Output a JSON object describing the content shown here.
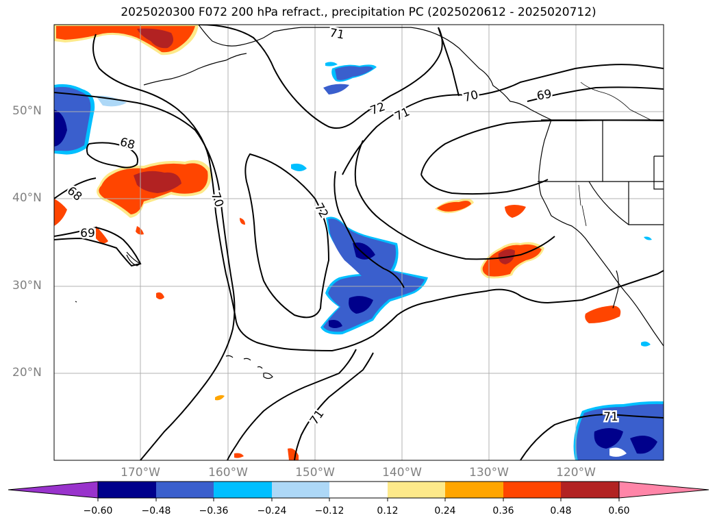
{
  "title": "2025020300 F072 200 hPa refract., precipitation PC (2025020612 - 2025020712)",
  "map": {
    "lat_labels": [
      "50°N",
      "40°N",
      "30°N",
      "20°N"
    ],
    "lon_labels": [
      "170°W",
      "160°W",
      "150°W",
      "140°W",
      "130°W",
      "120°W"
    ],
    "contour_labels": [
      "71",
      "72",
      "71",
      "70",
      "69",
      "68",
      "68",
      "69",
      "70",
      "72",
      "71",
      "71"
    ]
  },
  "colorbar": {
    "ticks": [
      "−0.60",
      "−0.48",
      "−0.36",
      "−0.24",
      "−0.12",
      "0.12",
      "0.24",
      "0.36",
      "0.48",
      "0.60"
    ],
    "colors": [
      "#9933cc",
      "#00008b",
      "#3a5fcd",
      "#00bfff",
      "#add8f7",
      "#ffffff",
      "#fde98a",
      "#ffa500",
      "#ff4500",
      "#b22222",
      "#ff85a8"
    ]
  }
}
